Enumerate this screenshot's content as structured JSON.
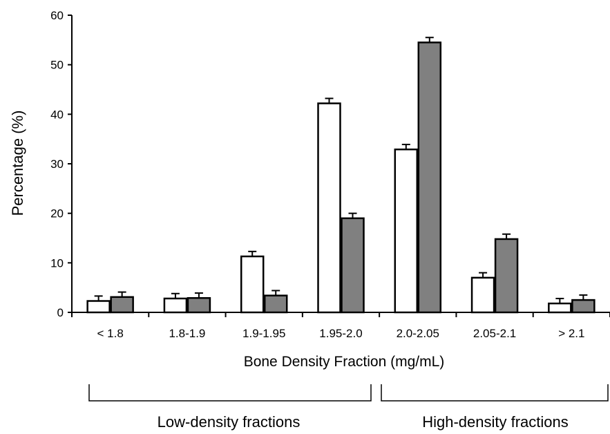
{
  "chart_data": {
    "type": "bar",
    "categories": [
      "< 1.8",
      "1.8-1.9",
      "1.9-1.95",
      "1.95-2.0",
      "2.0-2.05",
      "2.05-2.1",
      "> 2.1"
    ],
    "series": [
      {
        "color": "#ffffff",
        "values": [
          2.3,
          2.8,
          11.3,
          42.2,
          32.9,
          7.0,
          1.8
        ],
        "errors": [
          1.0,
          1.0,
          1.0,
          1.0,
          1.0,
          1.0,
          1.0
        ]
      },
      {
        "color": "#808080",
        "values": [
          3.1,
          2.9,
          3.4,
          19.0,
          54.5,
          14.8,
          2.5
        ],
        "errors": [
          1.0,
          1.0,
          1.0,
          1.0,
          1.0,
          1.0,
          1.0
        ]
      }
    ],
    "xlabel": "Bone Density Fraction (mg/mL)",
    "ylabel": "Percentage (%)",
    "ylim": [
      0,
      60
    ],
    "yticks": [
      0,
      10,
      20,
      30,
      40,
      50,
      60
    ],
    "grid": false,
    "groups": [
      {
        "label": "Low-density fractions",
        "categories": [
          "< 1.8",
          "1.8-1.9",
          "1.9-1.95",
          "1.95-2.0"
        ]
      },
      {
        "label": "High-density fractions",
        "categories": [
          "2.0-2.05",
          "2.05-2.1",
          "> 2.1"
        ]
      }
    ]
  }
}
